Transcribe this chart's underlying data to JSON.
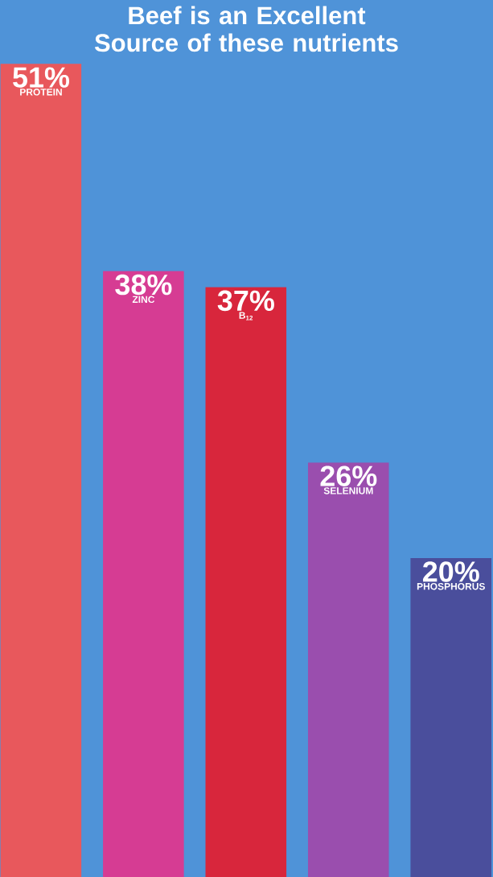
{
  "chart_data": {
    "type": "bar",
    "title": "Beef is an Excellent Source of these nutrients",
    "categories": [
      "PROTEIN",
      "ZINC",
      "B$_{12}$",
      "SELENIUM",
      "PHOSPHORUS"
    ],
    "values": [
      51,
      38,
      37,
      26,
      20
    ],
    "value_labels": [
      "51%",
      "38%",
      "37%",
      "26%",
      "20%"
    ],
    "colors": [
      "#e8585c",
      "#d63c93",
      "#d8263c",
      "#9a4eae",
      "#4a4e9c"
    ],
    "ylim": [
      0,
      55
    ]
  }
}
